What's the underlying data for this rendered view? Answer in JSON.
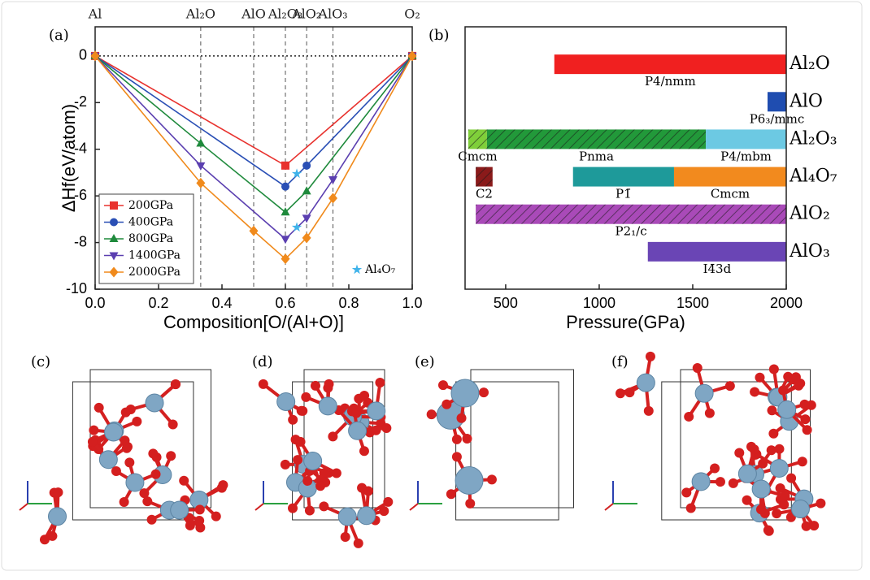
{
  "chart_data": [
    {
      "type": "line",
      "panel": "(a)",
      "x_label": "Composition[O/(Al+O)]",
      "y_label": "ΔHf(eV/atom)",
      "xlim": [
        0,
        1
      ],
      "ylim": [
        -10,
        1.25
      ],
      "xticks": [
        {
          "value": 0,
          "label": "0.0"
        },
        0.2,
        0.4,
        0.6,
        0.8,
        {
          "value": 1,
          "label": "1.0"
        }
      ],
      "yticks": [
        0,
        -2,
        -4,
        -6,
        -8,
        -10
      ],
      "zero_line": true,
      "composition_labels": [
        {
          "x": 0,
          "label": "Al"
        },
        {
          "x": 0.333,
          "label": "Al₂O"
        },
        {
          "x": 0.5,
          "label": "AlO"
        },
        {
          "x": 0.6,
          "label": "Al₂O₃"
        },
        {
          "x": 0.667,
          "label": "AlO₂"
        },
        {
          "x": 0.75,
          "label": "AlO₃"
        },
        {
          "x": 1,
          "label": "O₂"
        }
      ],
      "legend": "lower left",
      "series": [
        {
          "name": "200GPa",
          "color": "#e8322e",
          "marker": "square",
          "x": [
            0,
            0.6,
            1
          ],
          "values": [
            0,
            -4.7,
            0
          ]
        },
        {
          "name": "400GPa",
          "color": "#2a4fb5",
          "marker": "circle",
          "x": [
            0,
            0.6,
            0.667,
            1
          ],
          "values": [
            0,
            -5.6,
            -4.7,
            0
          ]
        },
        {
          "name": "800GPa",
          "color": "#1f8a3c",
          "marker": "triangle",
          "x": [
            0,
            0.333,
            0.6,
            0.667,
            1
          ],
          "values": [
            0,
            -3.75,
            -6.7,
            -5.8,
            0
          ]
        },
        {
          "name": "1400GPa",
          "color": "#5b3fb0",
          "marker": "triangle-down",
          "x": [
            0,
            0.333,
            0.6,
            0.667,
            0.75,
            1
          ],
          "values": [
            0,
            -4.7,
            -7.85,
            -6.95,
            -5.3,
            0
          ]
        },
        {
          "name": "2000GPa",
          "color": "#f08a1c",
          "marker": "diamond",
          "x": [
            0,
            0.333,
            0.5,
            0.6,
            0.667,
            0.75,
            1
          ],
          "values": [
            0,
            -5.45,
            -7.5,
            -8.7,
            -7.8,
            -6.1,
            0
          ]
        }
      ],
      "stars": {
        "name": "Al₄O₇",
        "color": "#3fb3ea",
        "marker": "star",
        "x": [
          0.636,
          0.636
        ],
        "values": [
          -5.05,
          -7.35
        ],
        "legend": "lower right"
      }
    },
    {
      "type": "range_bar",
      "panel": "(b)",
      "x_label": "Pressure(GPa)",
      "xlim": [
        283,
        2000
      ],
      "xticks": [
        500,
        1000,
        1500,
        2000
      ],
      "categories": [
        "Al₂O",
        "AlO",
        "Al₂O₃",
        "Al₄O₇",
        "AlO₂",
        "AlO₃"
      ],
      "phases": [
        [
          {
            "start": 760,
            "end": 2000,
            "color": "#f02020",
            "hatch": false,
            "label": "P4/nmm"
          }
        ],
        [
          {
            "start": 1900,
            "end": 2000,
            "color": "#1f4db0",
            "hatch": false,
            "label": "P6₃/mmc"
          }
        ],
        [
          {
            "start": 300,
            "end": 400,
            "color": "#7fcf3a",
            "hatch": true,
            "label": "Cmcm"
          },
          {
            "start": 400,
            "end": 1570,
            "color": "#22993a",
            "hatch": true,
            "label": "Pnma"
          },
          {
            "start": 1570,
            "end": 2000,
            "color": "#6cc9e3",
            "hatch": false,
            "label": "P4/mbm"
          }
        ],
        [
          {
            "start": 340,
            "end": 430,
            "color": "#8a1a1a",
            "hatch": true,
            "label": "C2"
          },
          {
            "start": 860,
            "end": 1400,
            "color": "#1e9a9a",
            "hatch": false,
            "label": "P1̄"
          },
          {
            "start": 1400,
            "end": 2000,
            "color": "#f28a1e",
            "hatch": false,
            "label": "Cmcm"
          }
        ],
        [
          {
            "start": 340,
            "end": 2000,
            "color": "#a94ab8",
            "hatch": true,
            "label": "P2₁/c"
          }
        ],
        [
          {
            "start": 1260,
            "end": 2000,
            "color": "#6a45b5",
            "hatch": false,
            "label": "I4̄3d"
          }
        ]
      ]
    }
  ],
  "structure_panels": [
    "(c)",
    "(d)",
    "(e)",
    "(f)"
  ]
}
